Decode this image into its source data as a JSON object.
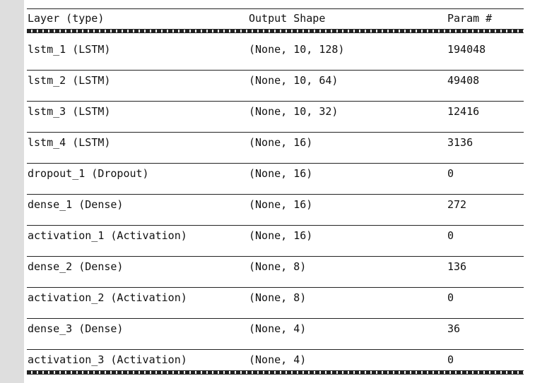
{
  "header": {
    "layer": "Layer (type)",
    "shape": "Output Shape",
    "params": "Param #"
  },
  "rows": [
    {
      "layer": "lstm_1 (LSTM)",
      "shape": "(None, 10, 128)",
      "params": "194048"
    },
    {
      "layer": "lstm_2 (LSTM)",
      "shape": "(None, 10, 64)",
      "params": "49408"
    },
    {
      "layer": "lstm_3 (LSTM)",
      "shape": "(None, 10, 32)",
      "params": "12416"
    },
    {
      "layer": "lstm_4 (LSTM)",
      "shape": "(None, 16)",
      "params": "3136"
    },
    {
      "layer": "dropout_1 (Dropout)",
      "shape": "(None, 16)",
      "params": "0"
    },
    {
      "layer": "dense_1 (Dense)",
      "shape": "(None, 16)",
      "params": "272"
    },
    {
      "layer": "activation_1 (Activation)",
      "shape": "(None, 16)",
      "params": "0"
    },
    {
      "layer": "dense_2 (Dense)",
      "shape": "(None, 8)",
      "params": "136"
    },
    {
      "layer": "activation_2 (Activation)",
      "shape": "(None, 8)",
      "params": "0"
    },
    {
      "layer": "dense_3 (Dense)",
      "shape": "(None, 4)",
      "params": "36"
    },
    {
      "layer": "activation_3 (Activation)",
      "shape": "(None, 4)",
      "params": "0"
    }
  ]
}
